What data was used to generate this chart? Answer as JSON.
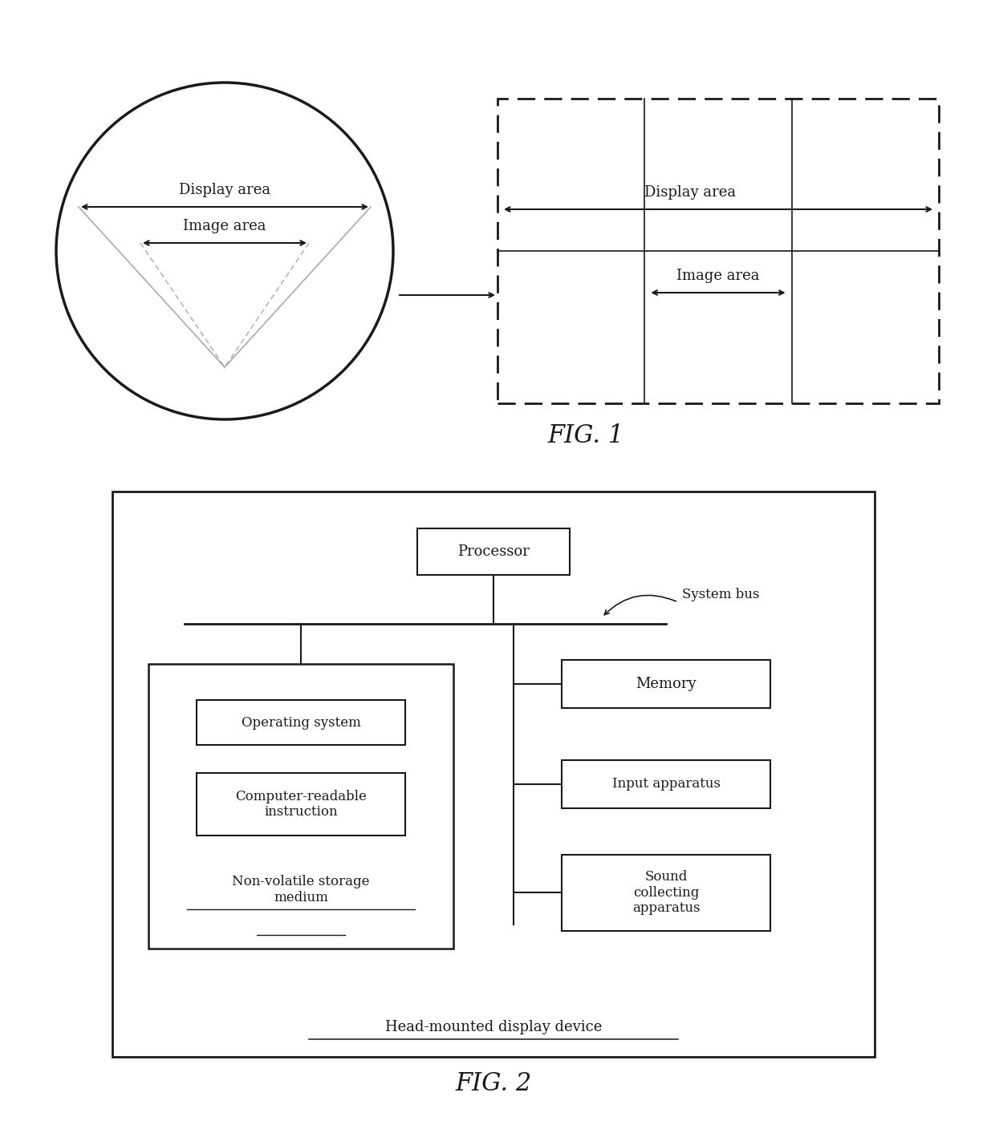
{
  "fig1_label": "FIG. 1",
  "fig2_label": "FIG. 2",
  "display_area_label": "Display area",
  "image_area_label": "Image area",
  "processor_label": "Processor",
  "system_bus_label": "System bus",
  "memory_label": "Memory",
  "input_apparatus_label": "Input apparatus",
  "sound_label": "Sound\ncollecting\napparatus",
  "os_label": "Operating system",
  "cr_label": "Computer-readable\ninstruction",
  "storage_label": "Non-volatile storage\nmedium",
  "hmd_label": "Head-mounted display device",
  "bg_color": "#ffffff",
  "line_color": "#1a1a1a",
  "font_size": 13,
  "font_size_fig": 22
}
